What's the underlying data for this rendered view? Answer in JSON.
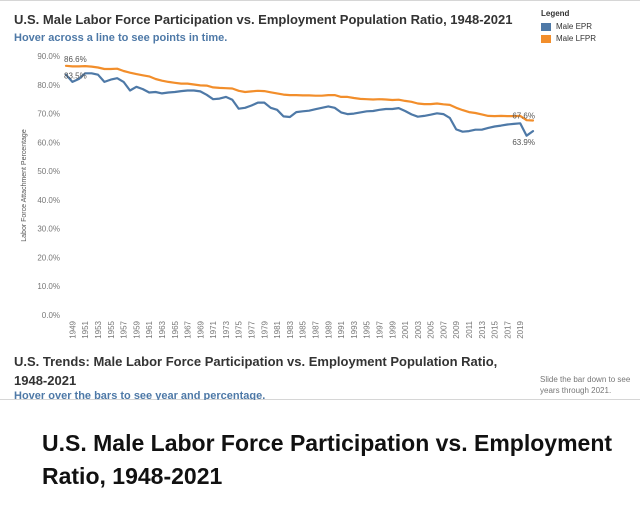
{
  "header": {
    "title": "U.S. Male Labor Force Participation vs. Employment Population Ratio, 1948-2021",
    "subtitle": "Hover across a line to see points in time."
  },
  "legend": {
    "title": "Legend",
    "items": [
      {
        "label": "Male EPR",
        "color": "#4e79a7"
      },
      {
        "label": "Male LFPR",
        "color": "#f28e2b"
      }
    ]
  },
  "bottom": {
    "title": "U.S. Trends: Male Labor Force Participation vs. Employment Population Ratio, 1948-2021",
    "subtitle": "Hover over the bars to see year and percentage.",
    "slide_note": "Slide the bar down to see years through 2021."
  },
  "caption": "U.S. Male Labor Force Participation vs. Employment Ratio, 1948-2021",
  "chart_data": {
    "type": "line",
    "ylabel": "Labor Force Attachment Percentage",
    "xlabel": "",
    "ylim": [
      0,
      90
    ],
    "yticks": [
      "0.0%",
      "10.0%",
      "20.0%",
      "30.0%",
      "40.0%",
      "50.0%",
      "60.0%",
      "70.0%",
      "80.0%",
      "90.0%"
    ],
    "x_tick_labels": [
      "1949",
      "1951",
      "1953",
      "1955",
      "1957",
      "1959",
      "1961",
      "1963",
      "1965",
      "1967",
      "1969",
      "1971",
      "1973",
      "1975",
      "1977",
      "1979",
      "1981",
      "1983",
      "1985",
      "1987",
      "1989",
      "1991",
      "1993",
      "1995",
      "1997",
      "1999",
      "2001",
      "2003",
      "2005",
      "2007",
      "2009",
      "2011",
      "2013",
      "2015",
      "2017",
      "2019"
    ],
    "x": [
      1948,
      1949,
      1950,
      1951,
      1952,
      1953,
      1954,
      1955,
      1956,
      1957,
      1958,
      1959,
      1960,
      1961,
      1962,
      1963,
      1964,
      1965,
      1966,
      1967,
      1968,
      1969,
      1970,
      1971,
      1972,
      1973,
      1974,
      1975,
      1976,
      1977,
      1978,
      1979,
      1980,
      1981,
      1982,
      1983,
      1984,
      1985,
      1986,
      1987,
      1988,
      1989,
      1990,
      1991,
      1992,
      1993,
      1994,
      1995,
      1996,
      1997,
      1998,
      1999,
      2000,
      2001,
      2002,
      2003,
      2004,
      2005,
      2006,
      2007,
      2008,
      2009,
      2010,
      2011,
      2012,
      2013,
      2014,
      2015,
      2016,
      2017,
      2018,
      2019,
      2020,
      2021
    ],
    "series": [
      {
        "name": "Male EPR",
        "color": "#4e79a7",
        "values": [
          83.5,
          81.0,
          82.0,
          84.0,
          84.0,
          83.5,
          81.0,
          81.8,
          82.3,
          81.0,
          78.0,
          79.3,
          78.5,
          77.3,
          77.5,
          77.0,
          77.3,
          77.5,
          77.8,
          78.0,
          78.0,
          77.7,
          76.5,
          75.0,
          75.2,
          75.8,
          74.8,
          71.7,
          72.0,
          72.8,
          73.8,
          73.8,
          72.0,
          71.3,
          69.0,
          68.8,
          70.5,
          70.8,
          71.0,
          71.5,
          72.0,
          72.5,
          72.0,
          70.4,
          69.8,
          70.0,
          70.4,
          70.8,
          70.9,
          71.3,
          71.6,
          71.6,
          71.9,
          70.9,
          69.7,
          68.9,
          69.2,
          69.6,
          70.1,
          69.8,
          68.5,
          64.5,
          63.7,
          63.9,
          64.4,
          64.4,
          65.0,
          65.5,
          65.8,
          66.2,
          66.4,
          66.6,
          62.3,
          63.9
        ]
      },
      {
        "name": "Male LFPR",
        "color": "#f28e2b",
        "values": [
          86.6,
          86.4,
          86.4,
          86.5,
          86.3,
          86.0,
          85.5,
          85.5,
          85.6,
          84.8,
          84.2,
          83.7,
          83.3,
          82.9,
          82.0,
          81.4,
          81.0,
          80.7,
          80.4,
          80.4,
          80.1,
          79.8,
          79.7,
          79.1,
          78.9,
          78.8,
          78.7,
          77.9,
          77.5,
          77.7,
          77.9,
          77.8,
          77.4,
          77.0,
          76.6,
          76.4,
          76.4,
          76.3,
          76.3,
          76.2,
          76.2,
          76.4,
          76.4,
          75.8,
          75.8,
          75.4,
          75.1,
          75.0,
          74.9,
          75.0,
          74.9,
          74.7,
          74.8,
          74.4,
          74.1,
          73.5,
          73.3,
          73.3,
          73.5,
          73.2,
          73.0,
          72.0,
          71.2,
          70.5,
          70.2,
          69.7,
          69.2,
          69.1,
          69.2,
          69.1,
          69.1,
          69.2,
          67.7,
          67.6
        ]
      }
    ],
    "annotations": [
      {
        "text": "86.6%",
        "series": "Male LFPR",
        "x": 1948
      },
      {
        "text": "83.5%",
        "series": "Male EPR",
        "x": 1948
      },
      {
        "text": "67.6%",
        "series": "Male LFPR",
        "x": 2021
      },
      {
        "text": "63.9%",
        "series": "Male EPR",
        "x": 2021
      }
    ],
    "grid": false,
    "legend_position": "top-right"
  }
}
